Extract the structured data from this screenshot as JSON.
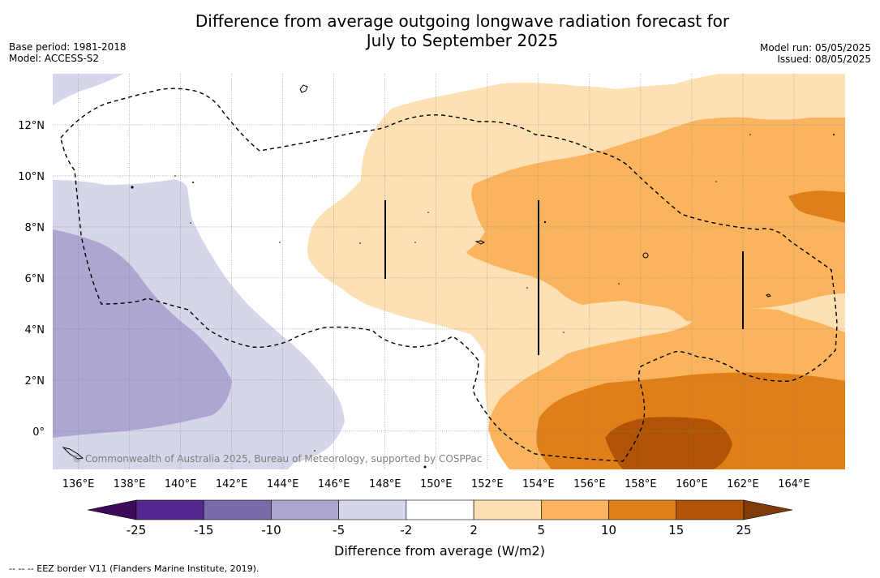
{
  "title": {
    "line1": "Difference from average outgoing longwave radiation forecast for",
    "line2": "July to September 2025"
  },
  "meta_left": {
    "base_period": "Base period: 1981-2018",
    "model": "Model: ACCESS-S2"
  },
  "meta_right": {
    "model_run": "Model run: 05/05/2025",
    "issued": "Issued: 08/05/2025"
  },
  "map": {
    "lon_range": [
      135,
      166
    ],
    "lat_range": [
      -1.5,
      14
    ],
    "lon_ticks": [
      "136°E",
      "138°E",
      "140°E",
      "142°E",
      "144°E",
      "146°E",
      "148°E",
      "150°E",
      "152°E",
      "154°E",
      "156°E",
      "158°E",
      "160°E",
      "162°E",
      "164°E"
    ],
    "lat_ticks": [
      "0°",
      "2°N",
      "4°N",
      "6°N",
      "8°N",
      "10°N",
      "12°N"
    ],
    "gridlines": true,
    "copyright": "© Commonwealth of Australia 2025, Bureau of Meteorology, supported by COSPPac"
  },
  "legend": {
    "label": "Difference from average (W/m2)",
    "tick_labels": [
      "-25",
      "-15",
      "-10",
      "-5",
      "-2",
      "2",
      "5",
      "10",
      "15",
      "25"
    ],
    "colors": [
      "#3f0a5c",
      "#54278f",
      "#7b6aaa",
      "#aea6d0",
      "#d6d6ea",
      "#ffffff",
      "#fde0b4",
      "#fbb45e",
      "#e07e17",
      "#b15305",
      "#7f3b08"
    ]
  },
  "footnote": "--  --  -- EEZ border V11 (Flanders Marine Institute, 2019)."
}
